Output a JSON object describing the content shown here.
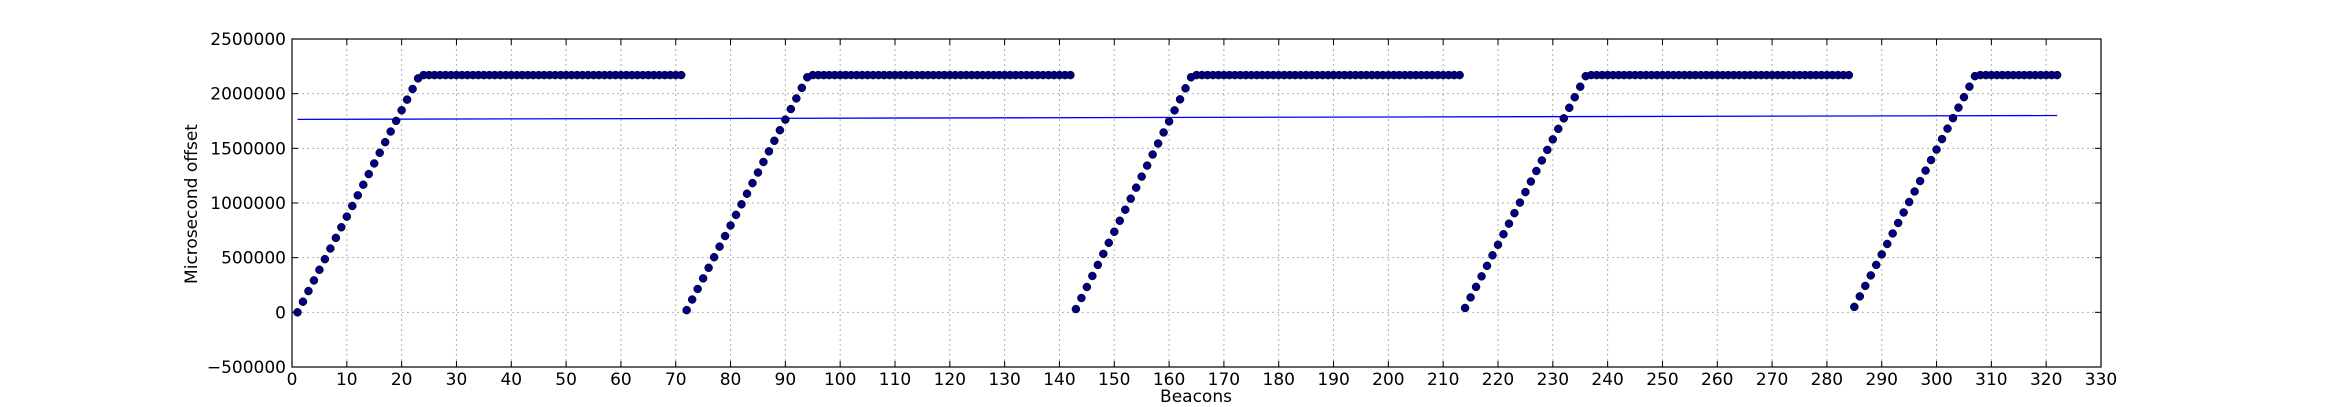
{
  "chart_data": {
    "type": "scatter",
    "xlabel": "Beacons",
    "ylabel": "Microsecond offset",
    "xlim": [
      0,
      330
    ],
    "ylim": [
      -500000,
      2500000
    ],
    "x_ticks": [
      0,
      10,
      20,
      30,
      40,
      50,
      60,
      70,
      80,
      90,
      100,
      110,
      120,
      130,
      140,
      150,
      160,
      170,
      180,
      190,
      200,
      210,
      220,
      230,
      240,
      250,
      260,
      270,
      280,
      290,
      300,
      310,
      320,
      330
    ],
    "x_tick_labels": [
      "0",
      "10",
      "20",
      "30",
      "40",
      "50",
      "60",
      "70",
      "80",
      "90",
      "100",
      "110",
      "120",
      "130",
      "140",
      "150",
      "160",
      "170",
      "180",
      "190",
      "200",
      "210",
      "220",
      "230",
      "240",
      "250",
      "260",
      "270",
      "280",
      "290",
      "300",
      "310",
      "320",
      "330"
    ],
    "y_ticks": [
      -500000,
      0,
      500000,
      1000000,
      1500000,
      2000000,
      2500000
    ],
    "y_tick_labels": [
      "−500000",
      "0",
      "500000",
      "1000000",
      "1500000",
      "2000000",
      "2500000"
    ],
    "grid": true,
    "colors": {
      "points": "#000080",
      "line": "#0000ff",
      "grid": "#b0b0b0"
    },
    "scatter_segments": [
      {
        "ramp_start": 1,
        "ramp_end": 23,
        "plateau_end": 71,
        "y_start": 0,
        "y_ramp_end": 2140000,
        "y_plateau": 2170000
      },
      {
        "ramp_start": 72,
        "ramp_end": 94,
        "plateau_end": 142,
        "y_start": 20000,
        "y_ramp_end": 2150000,
        "y_plateau": 2170000
      },
      {
        "ramp_start": 143,
        "ramp_end": 164,
        "plateau_end": 213,
        "y_start": 30000,
        "y_ramp_end": 2150000,
        "y_plateau": 2170000
      },
      {
        "ramp_start": 214,
        "ramp_end": 236,
        "plateau_end": 284,
        "y_start": 40000,
        "y_ramp_end": 2160000,
        "y_plateau": 2170000
      },
      {
        "ramp_start": 285,
        "ramp_end": 307,
        "plateau_end": 322,
        "y_start": 50000,
        "y_ramp_end": 2160000,
        "y_plateau": 2170000
      }
    ],
    "line_series": {
      "x": [
        1,
        322
      ],
      "y": [
        1765000,
        1800000
      ]
    }
  }
}
